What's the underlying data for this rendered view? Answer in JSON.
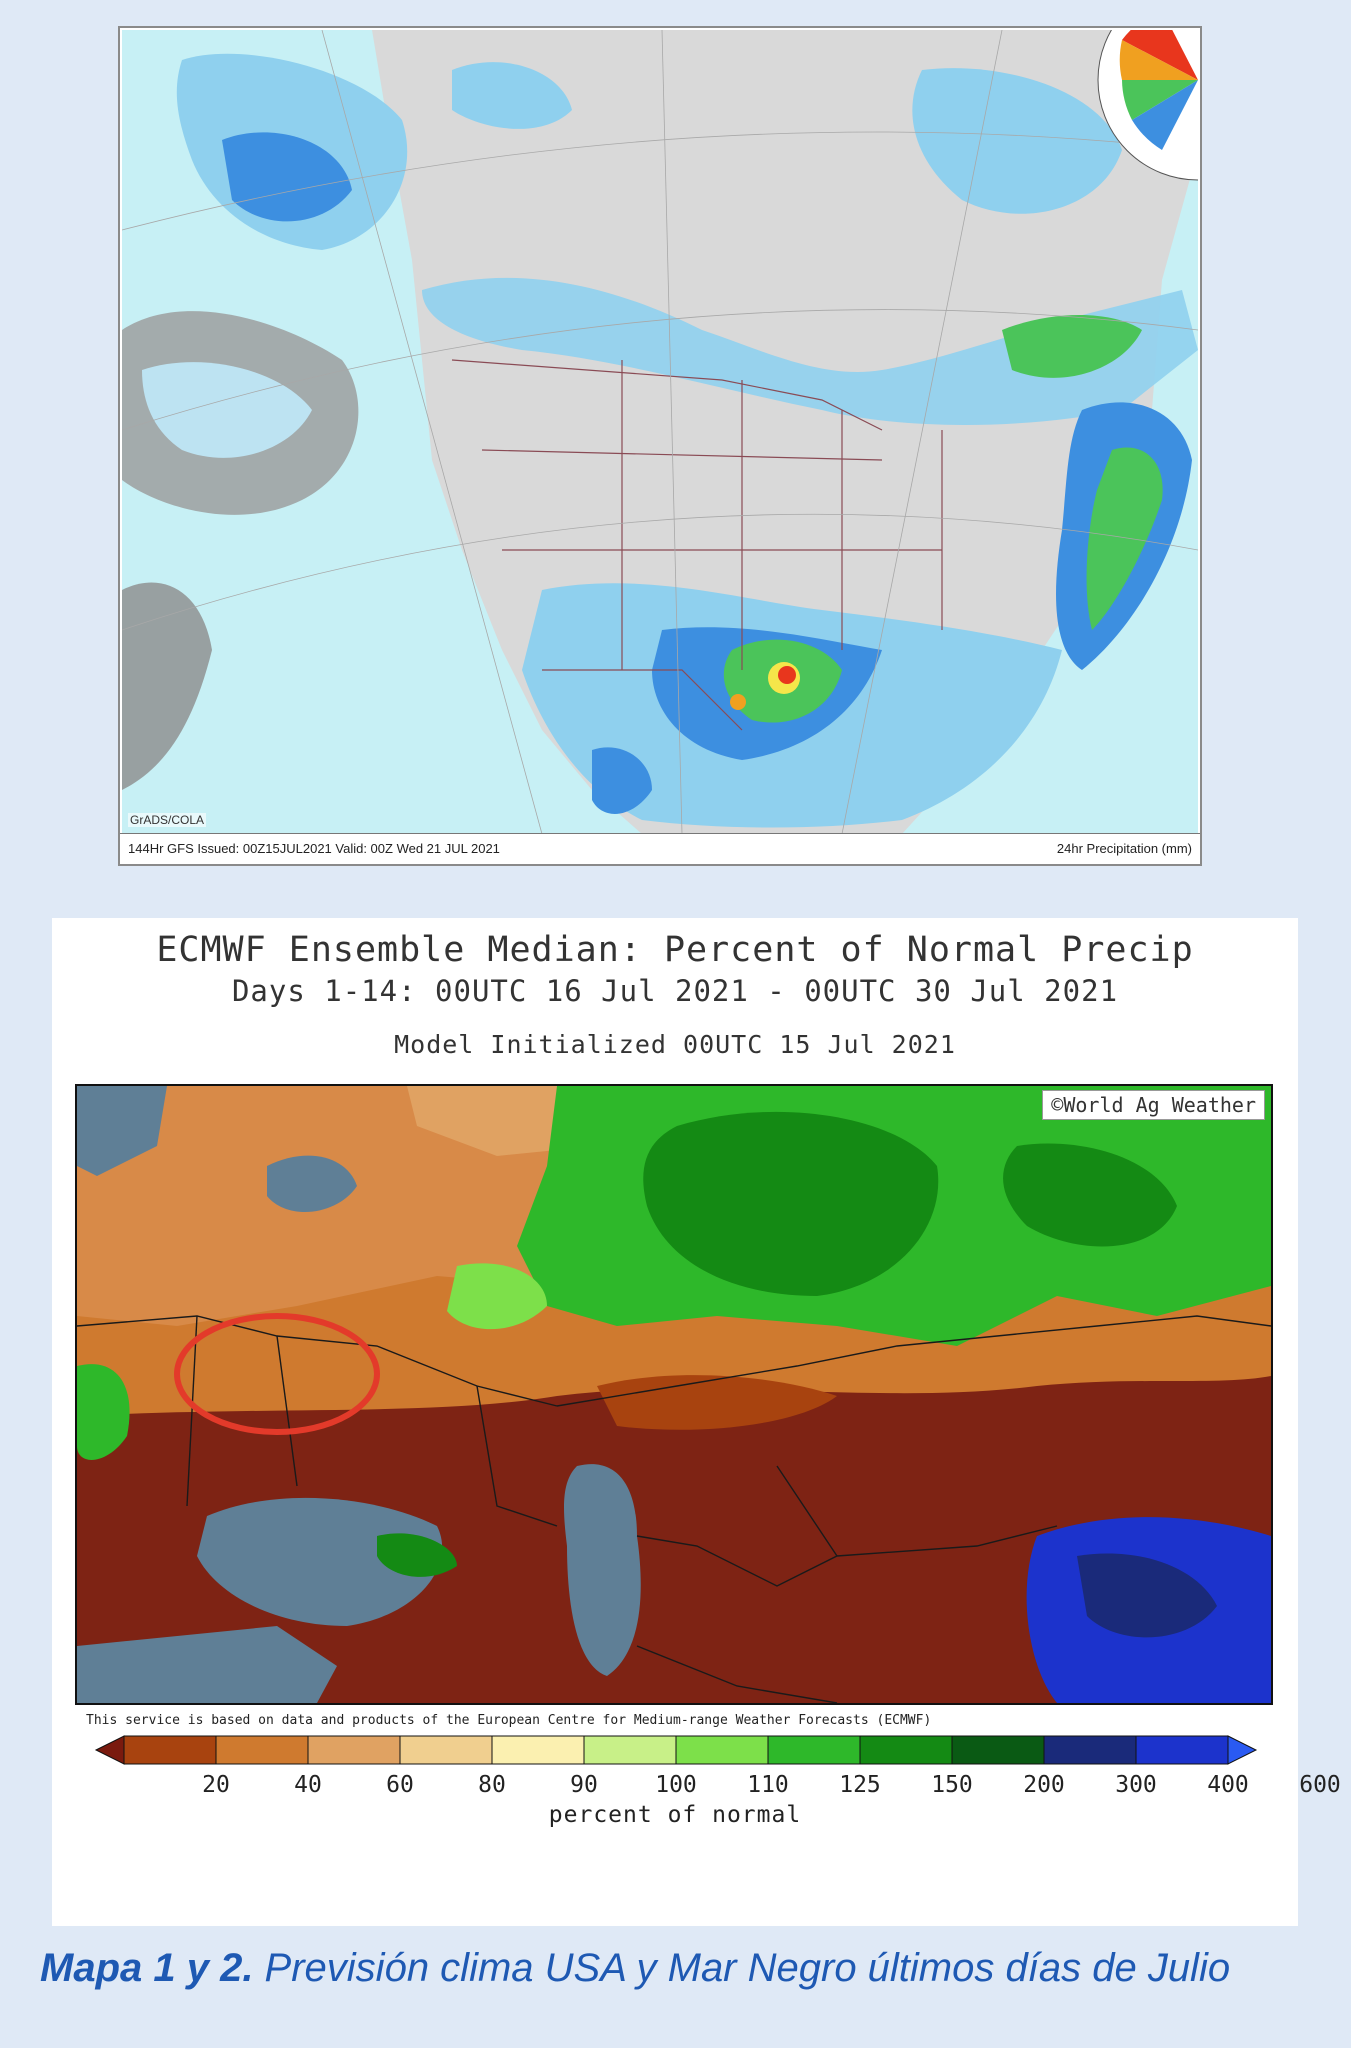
{
  "map1": {
    "credit": "GrADS/COLA",
    "footer_left": "144Hr GFS Issued: 00Z15JUL2021 Valid: 00Z Wed 21 JUL 2021",
    "footer_right": "24hr Precipitation (mm)",
    "colors": {
      "ocean": "#c7f0f5",
      "land": "#d9d9d9",
      "gray_dark": "#8c8c8c",
      "light_blue": "#8fd0ee",
      "blue": "#3d8fe0",
      "green": "#4bc45a",
      "red": "#e8361d",
      "orange": "#f0a020",
      "yellow": "#f5e64a"
    },
    "legend_icon": "precipitation-color-wheel-icon"
  },
  "map2": {
    "title": "ECMWF Ensemble Median: Percent of Normal Precip",
    "subtitle": "Days 1-14: 00UTC 16 Jul 2021 - 00UTC 30 Jul 2021",
    "init": "Model Initialized 00UTC 15 Jul 2021",
    "watermark": "©World Ag Weather",
    "disclaimer": "This service is based on data and products of the European Centre for Medium-range Weather Forecasts (ECMWF)",
    "colorbar": {
      "ticks": [
        "20",
        "40",
        "60",
        "80",
        "90",
        "100",
        "110",
        "125",
        "150",
        "200",
        "300",
        "400",
        "600"
      ],
      "colors": [
        "#7a1a0e",
        "#a8430f",
        "#cf7a2f",
        "#e0a262",
        "#f0cf8f",
        "#fbf0b0",
        "#c8f088",
        "#7de04a",
        "#2eb82a",
        "#148a14",
        "#0a5a14",
        "#1a2a7a",
        "#1c33cc",
        "#2a5af2"
      ],
      "label": "percent of normal"
    },
    "annotation": "red-circle-highlight-ukraine",
    "colors": {
      "water": "#5f7f96",
      "dry": "#7e2314",
      "orange": "#c97a3a",
      "tan": "#e0a86a",
      "green": "#2fa92f",
      "dark_green": "#1a7a20",
      "blue": "#1a33cc",
      "circle": "#e33a2a"
    }
  },
  "caption": {
    "bold": "Mapa 1 y 2.",
    "text": " Previsión clima USA y Mar Negro últimos días de Julio"
  }
}
